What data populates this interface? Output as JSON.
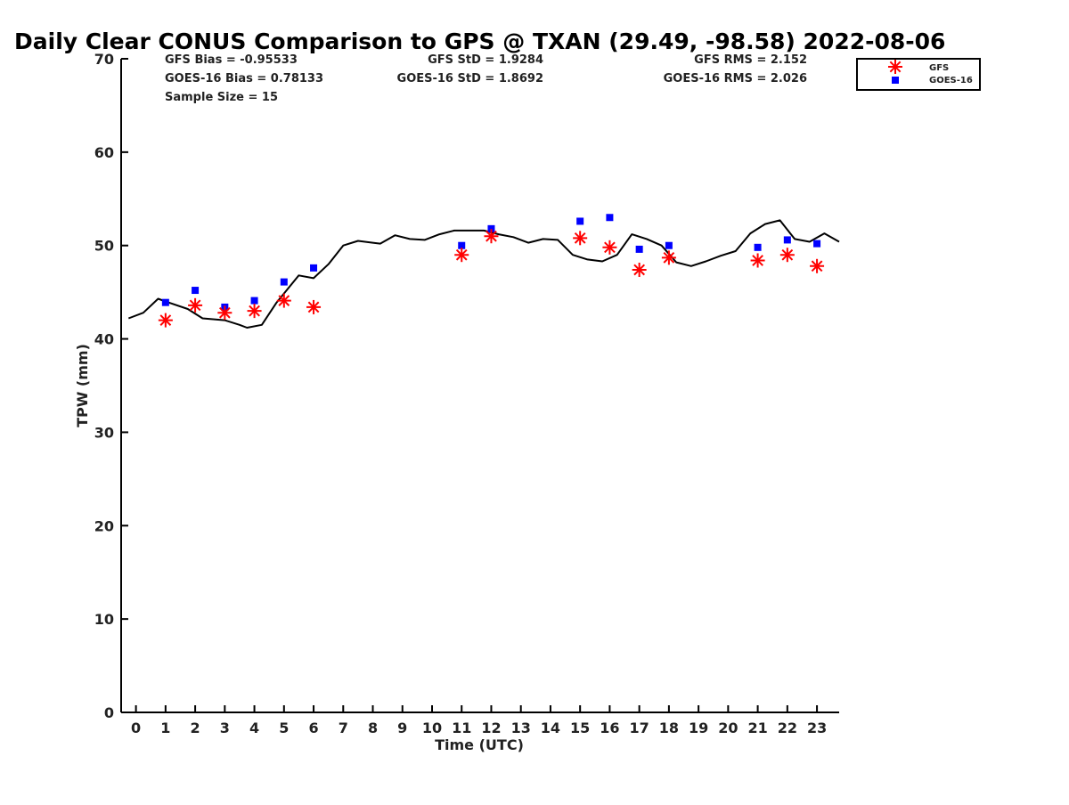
{
  "chart_data": {
    "type": "scatter",
    "title": "Daily Clear CONUS Comparison to GPS @ TXAN (29.49, -98.58) 2022-08-06",
    "xlabel": "Time (UTC)",
    "ylabel": "TPW (mm)",
    "xlim": [
      -0.5,
      23.75
    ],
    "ylim": [
      0,
      70
    ],
    "x_ticks": [
      "0",
      "1",
      "2",
      "3",
      "4",
      "5",
      "6",
      "7",
      "8",
      "9",
      "10",
      "11",
      "12",
      "13",
      "14",
      "15",
      "16",
      "17",
      "18",
      "19",
      "20",
      "21",
      "22",
      "23"
    ],
    "y_ticks": [
      "0",
      "10",
      "20",
      "30",
      "40",
      "50",
      "60",
      "70"
    ],
    "grid": false,
    "legend_position": "top-right",
    "stats": {
      "gfs_bias": "GFS Bias = -0.95533",
      "goes_bias": "GOES-16 Bias = 0.78133",
      "sample_size": "Sample Size = 15",
      "gfs_std": "GFS StD = 1.9284",
      "goes_std": "GOES-16 StD = 1.8692",
      "gfs_rms": "GFS RMS = 2.152",
      "goes_rms": "GOES-16 RMS = 2.026"
    },
    "gps_line": {
      "color": "#000000",
      "x": [
        -0.25,
        0.25,
        0.75,
        1.0,
        1.75,
        2.25,
        3.0,
        3.5,
        3.75,
        4.25,
        4.75,
        5.5,
        6.0,
        6.5,
        7.0,
        7.5,
        8.0,
        8.25,
        8.75,
        9.25,
        9.75,
        10.25,
        10.75,
        11.25,
        11.75,
        12.25,
        12.75,
        13.25,
        13.75,
        14.25,
        14.75,
        15.25,
        15.75,
        16.25,
        16.75,
        17.25,
        17.75,
        18.25,
        18.75,
        19.25,
        19.75,
        20.25,
        20.75,
        21.25,
        21.75,
        22.25,
        22.75,
        23.25,
        23.75
      ],
      "y": [
        42.2,
        42.8,
        44.3,
        44.0,
        43.2,
        42.2,
        42.0,
        41.5,
        41.2,
        41.5,
        43.9,
        46.8,
        46.5,
        48.0,
        50.0,
        50.5,
        50.3,
        50.2,
        51.1,
        50.7,
        50.6,
        51.2,
        51.6,
        51.6,
        51.6,
        51.2,
        50.9,
        50.3,
        50.7,
        50.6,
        49.0,
        48.5,
        48.3,
        49.0,
        51.2,
        50.7,
        50.0,
        48.2,
        47.8,
        48.3,
        48.9,
        49.4,
        51.3,
        52.3,
        52.7,
        50.7,
        50.4,
        51.3,
        50.4
      ]
    },
    "series": [
      {
        "name": "GFS",
        "marker": "asterisk",
        "color": "#ff0000",
        "x": [
          1,
          2,
          3,
          4,
          5,
          6,
          11,
          12,
          15,
          16,
          17,
          18,
          21,
          22,
          23
        ],
        "y": [
          42.0,
          43.6,
          42.8,
          43.0,
          44.1,
          43.4,
          49.0,
          51.0,
          50.8,
          49.8,
          47.4,
          48.7,
          48.4,
          49.0,
          47.8
        ]
      },
      {
        "name": "GOES-16",
        "marker": "square",
        "color": "#0000ff",
        "x": [
          1,
          2,
          3,
          4,
          5,
          6,
          11,
          12,
          15,
          16,
          17,
          18,
          21,
          22,
          23
        ],
        "y": [
          43.9,
          45.2,
          43.4,
          44.1,
          46.1,
          47.6,
          50.0,
          51.8,
          52.6,
          53.0,
          49.6,
          50.0,
          49.8,
          50.6,
          50.2
        ]
      }
    ]
  }
}
